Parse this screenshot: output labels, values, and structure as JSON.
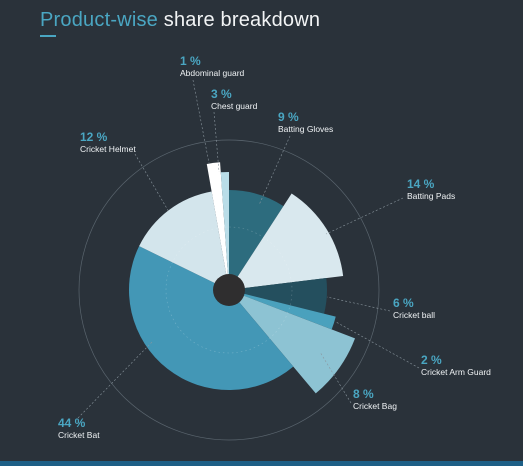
{
  "header": {
    "title_highlight": "Product-wise",
    "title_rest": " share breakdown"
  },
  "colors": {
    "background": "#2a323a",
    "accent": "#4aa6c2",
    "bottom_bar": "#1d5f86"
  },
  "chart_data": {
    "type": "polar-area",
    "title": "Product-wise share breakdown",
    "unit": "%",
    "slices": [
      {
        "name": "Abdominal guard",
        "value": 1,
        "label": "1 %",
        "color": "#ffffff"
      },
      {
        "name": "Chest guard",
        "value": 3,
        "label": "3 %",
        "color": "#b9dde8"
      },
      {
        "name": "Batting Gloves",
        "value": 9,
        "label": "9 %",
        "color": "#2d6c7e"
      },
      {
        "name": "Batting Pads",
        "value": 14,
        "label": "14 %",
        "color": "#d9e8ee"
      },
      {
        "name": "Cricket ball",
        "value": 6,
        "label": "6 %",
        "color": "#244f5e"
      },
      {
        "name": "Cricket Arm Guard",
        "value": 2,
        "label": "2 %",
        "color": "#4aa1bd"
      },
      {
        "name": "Cricket Bag",
        "value": 8,
        "label": "8 %",
        "color": "#8dc3d3"
      },
      {
        "name": "Cricket Bat",
        "value": 44,
        "label": "44 %",
        "color": "#4397b6"
      },
      {
        "name": "Cricket Helmet",
        "value": 12,
        "label": "12 %",
        "color": "#d3e5ec"
      }
    ]
  }
}
